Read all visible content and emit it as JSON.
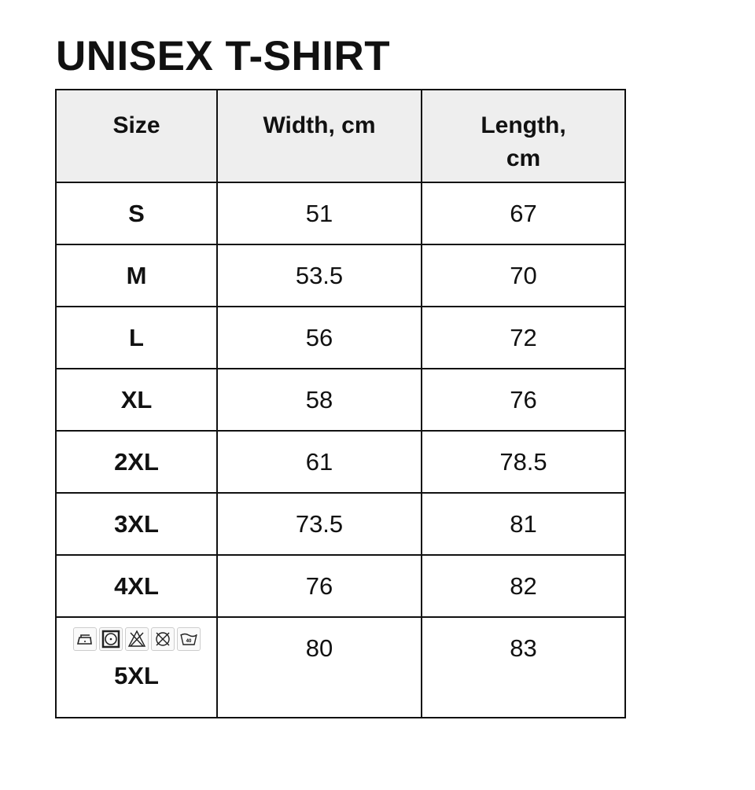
{
  "title": "UNISEX T-SHIRT",
  "headers": [
    "Size",
    "Width, cm",
    "Length,\ncm"
  ],
  "rows": [
    {
      "size": "S",
      "width": "51",
      "length": "67"
    },
    {
      "size": "M",
      "width": "53.5",
      "length": "70"
    },
    {
      "size": "L",
      "width": "56",
      "length": "72"
    },
    {
      "size": "XL",
      "width": "58",
      "length": "76"
    },
    {
      "size": "2XL",
      "width": "61",
      "length": "78.5"
    },
    {
      "size": "3XL",
      "width": "73.5",
      "length": "81"
    },
    {
      "size": "4XL",
      "width": "76",
      "length": "82"
    },
    {
      "size": "5XL",
      "width": "80",
      "length": "83"
    }
  ],
  "care_icons": [
    "iron-low-icon",
    "tumble-dry-icon",
    "no-bleach-icon",
    "no-dry-clean-icon",
    "wash-40-icon"
  ],
  "wash_temp": "40"
}
